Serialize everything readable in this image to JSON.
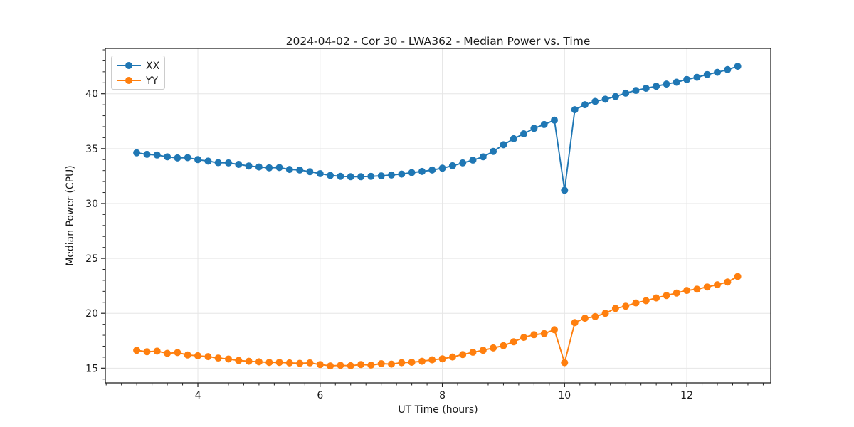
{
  "chart_data": {
    "type": "line",
    "title": "2024-04-02 - Cor 30 - LWA362 - Median Power vs. Time",
    "xlabel": "UT Time (hours)",
    "ylabel": "Median Power (CPU)",
    "xlim": [
      2.486,
      13.373
    ],
    "ylim": [
      13.66,
      44.13
    ],
    "x_major_ticks": [
      4,
      6,
      8,
      10,
      12
    ],
    "x_minor_step": 0.25,
    "y_major_ticks": [
      15,
      20,
      25,
      30,
      35,
      40
    ],
    "y_minor_step": 1,
    "grid": "major-both",
    "grid_color": "#e6e6e6",
    "spine_color": "#222222",
    "legend_position": "upper-left",
    "x": [
      3.0,
      3.167,
      3.333,
      3.5,
      3.667,
      3.833,
      4.0,
      4.167,
      4.333,
      4.5,
      4.667,
      4.833,
      5.0,
      5.167,
      5.333,
      5.5,
      5.667,
      5.833,
      6.0,
      6.167,
      6.333,
      6.5,
      6.667,
      6.833,
      7.0,
      7.167,
      7.333,
      7.5,
      7.667,
      7.833,
      8.0,
      8.167,
      8.333,
      8.5,
      8.667,
      8.833,
      9.0,
      9.167,
      9.333,
      9.5,
      9.667,
      9.833,
      10.0,
      10.167,
      10.333,
      10.5,
      10.667,
      10.833,
      11.0,
      11.167,
      11.333,
      11.5,
      11.667,
      11.833,
      12.0,
      12.167,
      12.333,
      12.5,
      12.667,
      12.833
    ],
    "series": [
      {
        "name": "XX",
        "color": "#1f77b4",
        "values": [
          34.62,
          34.48,
          34.42,
          34.25,
          34.15,
          34.18,
          34.0,
          33.86,
          33.72,
          33.7,
          33.56,
          33.42,
          33.33,
          33.25,
          33.28,
          33.1,
          33.05,
          32.9,
          32.72,
          32.56,
          32.48,
          32.44,
          32.44,
          32.48,
          32.52,
          32.6,
          32.68,
          32.82,
          32.92,
          33.05,
          33.22,
          33.44,
          33.7,
          33.95,
          34.25,
          34.75,
          35.35,
          35.9,
          36.35,
          36.85,
          37.2,
          37.6,
          31.2,
          38.55,
          39.0,
          39.3,
          39.5,
          39.75,
          40.05,
          40.3,
          40.5,
          40.68,
          40.88,
          41.05,
          41.3,
          41.5,
          41.75,
          41.95,
          42.2,
          42.5
        ]
      },
      {
        "name": "YY",
        "color": "#ff7f0e",
        "values": [
          16.62,
          16.5,
          16.55,
          16.35,
          16.42,
          16.2,
          16.13,
          16.05,
          15.92,
          15.83,
          15.7,
          15.63,
          15.58,
          15.53,
          15.53,
          15.48,
          15.44,
          15.48,
          15.33,
          15.21,
          15.26,
          15.22,
          15.33,
          15.28,
          15.41,
          15.37,
          15.5,
          15.54,
          15.63,
          15.76,
          15.85,
          16.02,
          16.24,
          16.45,
          16.63,
          16.84,
          17.05,
          17.4,
          17.8,
          18.05,
          18.15,
          18.5,
          15.5,
          19.15,
          19.55,
          19.7,
          20.0,
          20.45,
          20.65,
          20.95,
          21.15,
          21.4,
          21.62,
          21.85,
          22.08,
          22.2,
          22.4,
          22.6,
          22.85,
          23.35
        ]
      }
    ]
  }
}
